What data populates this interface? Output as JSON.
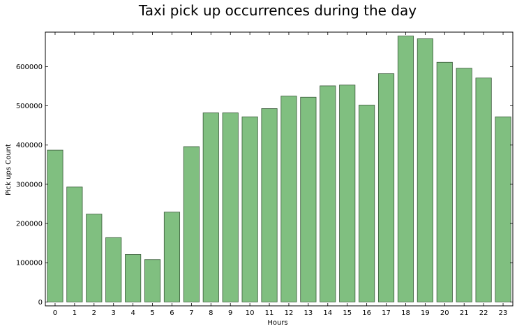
{
  "chart_data": {
    "type": "bar",
    "title": "Taxi pick up occurrences during the day",
    "xlabel": "Hours",
    "ylabel": "Pick ups Count",
    "categories": [
      "0",
      "1",
      "2",
      "3",
      "4",
      "5",
      "6",
      "7",
      "8",
      "9",
      "10",
      "11",
      "12",
      "13",
      "14",
      "15",
      "16",
      "17",
      "18",
      "19",
      "20",
      "21",
      "22",
      "23"
    ],
    "values": [
      387000,
      293000,
      224000,
      164000,
      121000,
      108000,
      229000,
      396000,
      482000,
      482000,
      472000,
      493000,
      525000,
      522000,
      551000,
      553000,
      502000,
      582000,
      678000,
      671000,
      611000,
      596000,
      571000,
      472000
    ],
    "yticks": [
      0,
      100000,
      200000,
      300000,
      400000,
      500000,
      600000
    ],
    "ytick_labels": [
      "0",
      "100000",
      "200000",
      "300000",
      "400000",
      "500000",
      "600000"
    ],
    "ylim": [
      -10000,
      688000
    ],
    "grid": false,
    "legend": "none",
    "bar_color": "#80bf80",
    "bar_edge_color": "#3a5a3a"
  }
}
